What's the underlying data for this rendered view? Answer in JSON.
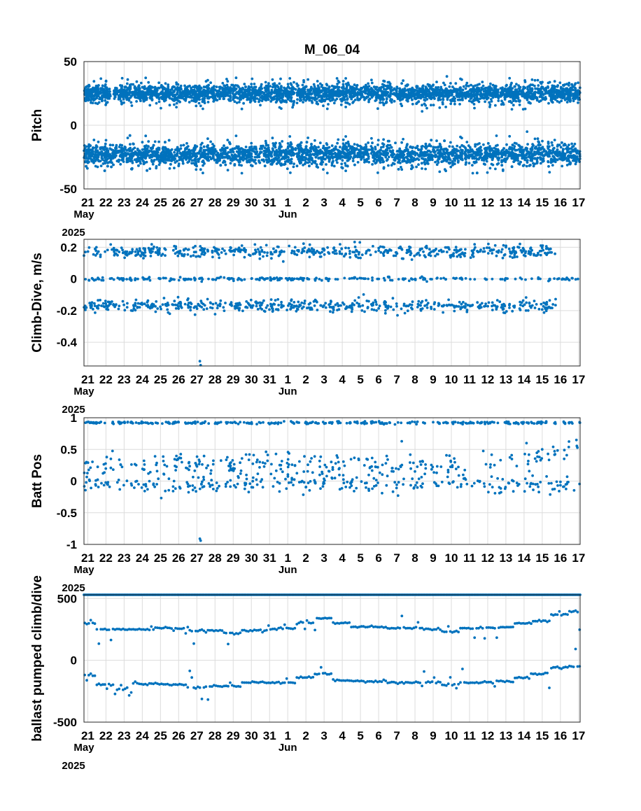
{
  "title": "M_06_04",
  "colors": {
    "marker": "#0072BD",
    "grid": "#dcdcdc",
    "axes": "#262626"
  },
  "chart_data": [
    {
      "type": "scatter",
      "title": "M_06_04",
      "ylabel": "Pitch",
      "xlabel": "",
      "x_range": [
        "2025-05-20T19:00",
        "2025-06-17T02:00"
      ],
      "x_tick_labels": [
        "21",
        "22",
        "23",
        "24",
        "25",
        "26",
        "27",
        "28",
        "29",
        "30",
        "31",
        "1",
        "2",
        "3",
        "4",
        "5",
        "6",
        "7",
        "8",
        "9",
        "10",
        "11",
        "12",
        "13",
        "14",
        "15",
        "16",
        "17"
      ],
      "x_sub_labels": {
        "may": "May",
        "jun": "Jun",
        "year": "2025"
      },
      "ylim": [
        -50,
        50
      ],
      "y_ticks": [
        -50,
        0,
        50
      ],
      "y_tick_labels": [
        "-50",
        "0",
        "50"
      ],
      "grid": true,
      "series": [
        {
          "cluster": "climb",
          "center": 25,
          "spread": 5,
          "density": "very high",
          "gap_dates": [
            "2025-05-22T06:00",
            "2025-05-22T10:00"
          ]
        },
        {
          "cluster": "dive",
          "center": -23,
          "spread": 6,
          "density": "very high"
        }
      ]
    },
    {
      "type": "scatter",
      "ylabel": "Climb-Dive, m/s",
      "xlabel": "",
      "x_range": [
        "2025-05-20T19:00",
        "2025-06-17T02:00"
      ],
      "ylim": [
        -0.55,
        0.25
      ],
      "y_ticks": [
        -0.4,
        -0.2,
        0,
        0.2
      ],
      "y_tick_labels": [
        "-0.4",
        "-0.2",
        "0",
        "0.2"
      ],
      "grid": true,
      "series": [
        {
          "cluster": "climb",
          "center": 0.17,
          "spread": 0.02,
          "end_date": "2025-06-15T18:00"
        },
        {
          "cluster": "zero",
          "center": 0.0,
          "spread": 0.005
        },
        {
          "cluster": "dive",
          "center": -0.17,
          "spread": 0.02,
          "end_date": "2025-06-15T18:00"
        },
        {
          "cluster": "outliers",
          "points": [
            [
              "2025-05-27T04:00",
              -0.52
            ],
            [
              "2025-05-27T05:00",
              -0.545
            ]
          ]
        }
      ]
    },
    {
      "type": "scatter",
      "ylabel": "Batt Pos",
      "xlabel": "",
      "x_range": [
        "2025-05-20T19:00",
        "2025-06-17T02:00"
      ],
      "ylim": [
        -1,
        1
      ],
      "y_ticks": [
        -1,
        -0.5,
        0,
        0.5,
        1
      ],
      "y_tick_labels": [
        "-1",
        "-0.5",
        "0",
        "0.5",
        "1"
      ],
      "grid": true,
      "series": [
        {
          "cluster": "top",
          "center": 0.92,
          "spread": 0.01
        },
        {
          "cluster": "mid",
          "center": 0.25,
          "spread": 0.1
        },
        {
          "cluster": "low",
          "center": -0.05,
          "spread": 0.07
        },
        {
          "cluster": "outliers",
          "points": [
            [
              "2025-05-27T04:00",
              -0.91
            ],
            [
              "2025-05-27T05:00",
              -0.94
            ]
          ]
        }
      ]
    },
    {
      "type": "scatter",
      "ylabel": "ballast pumped climb/dive",
      "xlabel": "",
      "x_range": [
        "2025-05-20T19:00",
        "2025-06-17T02:00"
      ],
      "ylim": [
        -500,
        530
      ],
      "y_ticks": [
        -500,
        0,
        500
      ],
      "y_tick_labels": [
        "-500",
        "0",
        "500"
      ],
      "grid": true,
      "series": [
        {
          "cluster": "max",
          "value": 530
        },
        {
          "cluster": "climb_steps",
          "values_by_day": [
            300,
            250,
            250,
            250,
            260,
            260,
            240,
            240,
            220,
            240,
            250,
            260,
            300,
            340,
            300,
            270,
            270,
            260,
            260,
            250,
            230,
            260,
            260,
            270,
            300,
            320,
            370,
            390
          ]
        },
        {
          "cluster": "dive_steps",
          "values_by_day": [
            -120,
            -200,
            -230,
            -190,
            -190,
            -200,
            -220,
            -210,
            -210,
            -180,
            -180,
            -180,
            -140,
            -110,
            -160,
            -170,
            -170,
            -180,
            -180,
            -180,
            -200,
            -180,
            -180,
            -170,
            -140,
            -110,
            -60,
            -50
          ]
        }
      ]
    }
  ]
}
